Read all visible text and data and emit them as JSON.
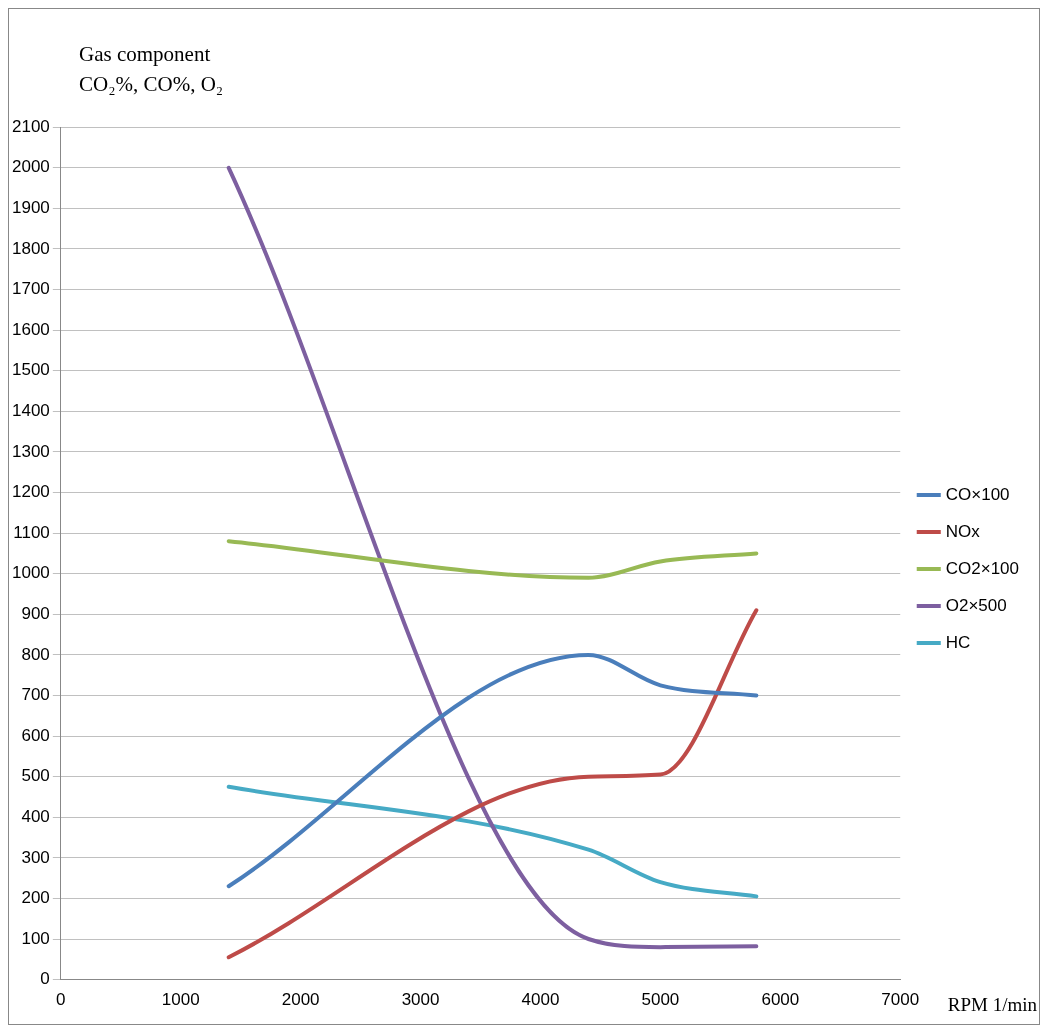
{
  "chart_data": {
    "type": "line",
    "ylabel": "Gas component\nCO₂%, CO%, O₂",
    "xlabel": "RPM 1/min",
    "x": [
      1400,
      4400,
      5000,
      5800
    ],
    "series": [
      {
        "name": "CO×100",
        "color": "#4a7ebb",
        "values": [
          230,
          800,
          725,
          700
        ]
      },
      {
        "name": "NOx",
        "color": "#be4b48",
        "values": [
          55,
          500,
          505,
          910
        ]
      },
      {
        "name": "CO2×100",
        "color": "#98b954",
        "values": [
          1080,
          990,
          1030,
          1050
        ]
      },
      {
        "name": "O2×500",
        "color": "#7d5fa0",
        "values": [
          2000,
          100,
          80,
          82
        ]
      },
      {
        "name": "HC",
        "color": "#46aac5",
        "values": [
          475,
          320,
          240,
          205
        ]
      }
    ],
    "xlim": [
      0,
      7000
    ],
    "xticks": [
      0,
      1000,
      2000,
      3000,
      4000,
      5000,
      6000,
      7000
    ],
    "ylim": [
      0,
      2100
    ],
    "yticks": [
      0,
      100,
      200,
      300,
      400,
      500,
      600,
      700,
      800,
      900,
      1000,
      1100,
      1200,
      1300,
      1400,
      1500,
      1600,
      1700,
      1800,
      1900,
      2000,
      2100
    ],
    "grid": "y",
    "legend": "right",
    "marker": "none"
  }
}
